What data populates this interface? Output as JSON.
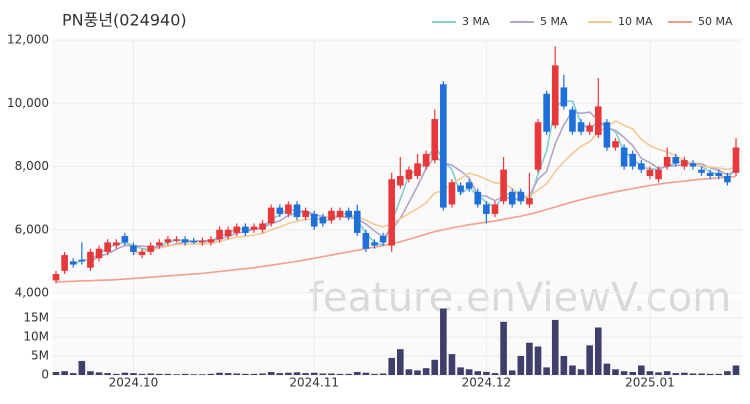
{
  "chart_data": {
    "type": "candlestick",
    "title": "PN풍년(024940)",
    "watermark": "feature.enViewV.com",
    "categories": [
      null,
      null,
      null,
      null,
      null,
      null,
      null,
      null,
      null,
      "2024.10",
      null,
      null,
      null,
      null,
      null,
      null,
      null,
      null,
      null,
      null,
      null,
      null,
      null,
      null,
      null,
      null,
      null,
      null,
      null,
      null,
      "2024.11",
      null,
      null,
      null,
      null,
      null,
      null,
      null,
      null,
      null,
      null,
      null,
      null,
      null,
      null,
      null,
      null,
      null,
      null,
      null,
      "2024.12",
      null,
      null,
      null,
      null,
      null,
      null,
      null,
      null,
      null,
      null,
      null,
      null,
      null,
      null,
      null,
      null,
      null,
      null,
      "2025.01",
      null,
      null,
      null,
      null,
      null,
      null,
      null,
      null,
      null,
      null
    ],
    "open": [
      4400,
      4700,
      5000,
      5050,
      4800,
      5100,
      5300,
      5500,
      5800,
      5500,
      5200,
      5300,
      5500,
      5600,
      5650,
      5700,
      5650,
      5600,
      5600,
      5700,
      5800,
      5900,
      6100,
      6000,
      6000,
      6200,
      6700,
      6500,
      6800,
      6400,
      6500,
      6400,
      6300,
      6400,
      6600,
      6600,
      5900,
      5600,
      5800,
      5500,
      7400,
      7600,
      7700,
      8000,
      8200,
      10600,
      6800,
      7400,
      7500,
      7200,
      6800,
      6500,
      6900,
      7200,
      7200,
      6800,
      7900,
      10300,
      9300,
      10500,
      9800,
      9400,
      9100,
      9000,
      9400,
      8600,
      8600,
      8400,
      8100,
      7700,
      7600,
      8000,
      8300,
      8000,
      8100,
      7900,
      7800,
      7800,
      7700,
      7800
    ],
    "high": [
      4700,
      5300,
      5100,
      5600,
      5400,
      5500,
      5700,
      5700,
      5900,
      5600,
      5400,
      5600,
      5700,
      5800,
      5800,
      5800,
      5750,
      5750,
      5800,
      6100,
      6100,
      6200,
      6200,
      6200,
      6300,
      6800,
      6800,
      6900,
      6900,
      6700,
      6600,
      6500,
      6700,
      6700,
      6700,
      6800,
      6000,
      5700,
      5900,
      7800,
      8300,
      8000,
      8400,
      8500,
      9800,
      10700,
      7600,
      7500,
      7600,
      7300,
      6900,
      6900,
      8300,
      7300,
      7300,
      7800,
      9500,
      10400,
      11800,
      10900,
      9900,
      9500,
      9400,
      10800,
      9500,
      8900,
      8700,
      8500,
      8200,
      8000,
      8000,
      8600,
      8400,
      8300,
      8200,
      8000,
      7900,
      7900,
      7800,
      8900
    ],
    "low": [
      4300,
      4600,
      4800,
      4900,
      4700,
      5000,
      5200,
      5400,
      5500,
      5200,
      5100,
      5200,
      5400,
      5500,
      5600,
      5500,
      5550,
      5500,
      5500,
      5600,
      5700,
      5800,
      5800,
      5900,
      5900,
      6100,
      6400,
      6400,
      6300,
      6300,
      6000,
      6100,
      6200,
      6300,
      6300,
      5800,
      5300,
      5400,
      5500,
      5300,
      7300,
      7500,
      7600,
      7900,
      8100,
      6600,
      6700,
      7100,
      7200,
      6700,
      6200,
      6400,
      6800,
      6700,
      6800,
      6700,
      7800,
      9000,
      9200,
      9800,
      9000,
      9000,
      9000,
      8900,
      8500,
      8500,
      7900,
      7900,
      7800,
      7600,
      7500,
      7900,
      8000,
      7900,
      7900,
      7700,
      7600,
      7600,
      7400,
      7700
    ],
    "close": [
      4600,
      5200,
      4900,
      5000,
      5300,
      5400,
      5600,
      5600,
      5600,
      5300,
      5300,
      5500,
      5600,
      5700,
      5700,
      5600,
      5600,
      5650,
      5700,
      6000,
      6000,
      6100,
      5900,
      6100,
      6200,
      6700,
      6500,
      6800,
      6400,
      6600,
      6100,
      6200,
      6600,
      6600,
      6400,
      5900,
      5400,
      5500,
      5600,
      7600,
      7700,
      7900,
      8100,
      8400,
      9500,
      6700,
      7500,
      7200,
      7300,
      6800,
      6500,
      6800,
      7900,
      6800,
      6900,
      7000,
      9400,
      9100,
      11200,
      9900,
      9100,
      9100,
      9300,
      9900,
      8600,
      8800,
      8000,
      8000,
      7900,
      7900,
      7900,
      8300,
      8100,
      8200,
      8000,
      7800,
      7700,
      7700,
      7500,
      8600
    ],
    "up_color": "#e8383b",
    "down_color": "#1e6fd9",
    "series": [
      {
        "name": "3 MA",
        "color": "#7fcfd0",
        "values": [
          null,
          null,
          4900,
          5033,
          5067,
          5233,
          5433,
          5533,
          5600,
          5500,
          5400,
          5367,
          5467,
          5600,
          5667,
          5667,
          5633,
          5617,
          5650,
          5783,
          5900,
          6033,
          6000,
          6033,
          6067,
          6333,
          6467,
          6667,
          6567,
          6600,
          6367,
          6300,
          6300,
          6467,
          6533,
          6300,
          5900,
          5600,
          5500,
          6233,
          6967,
          7733,
          7900,
          8133,
          8667,
          8200,
          7900,
          7133,
          7333,
          7100,
          6867,
          6700,
          7067,
          7167,
          7200,
          6900,
          7767,
          8500,
          9900,
          10067,
          10067,
          9367,
          9167,
          9433,
          9267,
          9100,
          8467,
          8267,
          7967,
          7933,
          7900,
          8033,
          8100,
          8200,
          8100,
          8000,
          7833,
          7733,
          7633,
          7933
        ]
      },
      {
        "name": "5 MA",
        "color": "#b3a3c9",
        "values": [
          null,
          null,
          null,
          null,
          5000,
          5160,
          5240,
          5380,
          5500,
          5500,
          5480,
          5460,
          5460,
          5480,
          5560,
          5620,
          5640,
          5650,
          5650,
          5710,
          5790,
          5890,
          5940,
          6020,
          6060,
          6200,
          6280,
          6460,
          6520,
          6600,
          6480,
          6420,
          6380,
          6420,
          6380,
          6340,
          6180,
          5960,
          5760,
          6000,
          6360,
          6860,
          7380,
          7940,
          8320,
          8120,
          8040,
          7860,
          7640,
          7100,
          7060,
          6920,
          7060,
          6960,
          6980,
          7080,
          7600,
          7840,
          8720,
          9320,
          9740,
          9680,
          9720,
          9460,
          9200,
          9140,
          8920,
          8660,
          8260,
          8120,
          7940,
          8000,
          8020,
          8080,
          8100,
          8080,
          7960,
          7880,
          7740,
          7860
        ]
      },
      {
        "name": "10 MA",
        "color": "#f5c893",
        "values": [
          null,
          null,
          null,
          null,
          null,
          null,
          null,
          null,
          null,
          5250,
          5320,
          5350,
          5420,
          5490,
          5530,
          5550,
          5550,
          5555,
          5565,
          5635,
          5705,
          5765,
          5795,
          5835,
          5885,
          5995,
          6085,
          6200,
          6270,
          6330,
          6340,
          6350,
          6420,
          6470,
          6490,
          6410,
          6300,
          6170,
          6090,
          6190,
          6350,
          6520,
          6670,
          6850,
          7160,
          7240,
          7450,
          7620,
          7790,
          7710,
          7590,
          7480,
          7460,
          7300,
          7040,
          7070,
          7260,
          7450,
          7840,
          8150,
          8410,
          8640,
          8780,
          9090,
          9260,
          9440,
          9300,
          9190,
          8860,
          8660,
          8540,
          8460,
          8340,
          8170,
          8110,
          8010,
          7980,
          7950,
          7910,
          7980
        ]
      },
      {
        "name": "50 MA",
        "color": "#f3a08b",
        "values": [
          4350,
          4360,
          4370,
          4380,
          4390,
          4400,
          4410,
          4420,
          4440,
          4460,
          4480,
          4500,
          4520,
          4540,
          4560,
          4580,
          4600,
          4620,
          4650,
          4680,
          4710,
          4740,
          4770,
          4800,
          4840,
          4880,
          4920,
          4960,
          5000,
          5050,
          5100,
          5150,
          5200,
          5250,
          5300,
          5350,
          5400,
          5450,
          5500,
          5560,
          5620,
          5700,
          5780,
          5860,
          5940,
          6000,
          6060,
          6110,
          6160,
          6200,
          6240,
          6280,
          6330,
          6380,
          6430,
          6490,
          6560,
          6640,
          6720,
          6800,
          6880,
          6950,
          7020,
          7080,
          7140,
          7200,
          7250,
          7300,
          7350,
          7400,
          7440,
          7480,
          7510,
          7540,
          7570,
          7600,
          7620,
          7640,
          7660,
          7680
        ]
      }
    ],
    "ylim": [
      4000,
      12000
    ],
    "yticks": [
      {
        "value": 4000,
        "label": "4,000"
      },
      {
        "value": 6000,
        "label": "6,000"
      },
      {
        "value": 8000,
        "label": "8,000"
      },
      {
        "value": 10000,
        "label": "10,000"
      },
      {
        "value": 12000,
        "label": "12,000"
      }
    ],
    "grid": true,
    "legend": "top-right",
    "volume": {
      "color": "#3f3f6b",
      "values": [
        800000,
        1000000,
        500000,
        3700000,
        1000000,
        700000,
        500000,
        300000,
        600000,
        500000,
        300000,
        400000,
        300000,
        300000,
        200000,
        300000,
        200000,
        200000,
        300000,
        600000,
        500000,
        400000,
        300000,
        300000,
        400000,
        800000,
        500000,
        600000,
        700000,
        500000,
        600000,
        400000,
        400000,
        300000,
        300000,
        800000,
        600000,
        300000,
        400000,
        4500000,
        6800000,
        1500000,
        1200000,
        1800000,
        4000000,
        17500000,
        5500000,
        2000000,
        1500000,
        1000000,
        800000,
        500000,
        14000000,
        1200000,
        5000000,
        8500000,
        7500000,
        2000000,
        14500000,
        5000000,
        2500000,
        1500000,
        7800000,
        12500000,
        3000000,
        1500000,
        1000000,
        800000,
        2500000,
        1000000,
        700000,
        1000000,
        500000,
        600000,
        400000,
        400000,
        300000,
        300000,
        1000000,
        2500000
      ],
      "ylim": [
        0,
        20000000
      ],
      "yticks": [
        0,
        {
          "value": 5000000,
          "label": "5M"
        },
        {
          "value": 10000000,
          "label": "10M"
        },
        {
          "value": 15000000,
          "label": "15M"
        }
      ]
    }
  }
}
